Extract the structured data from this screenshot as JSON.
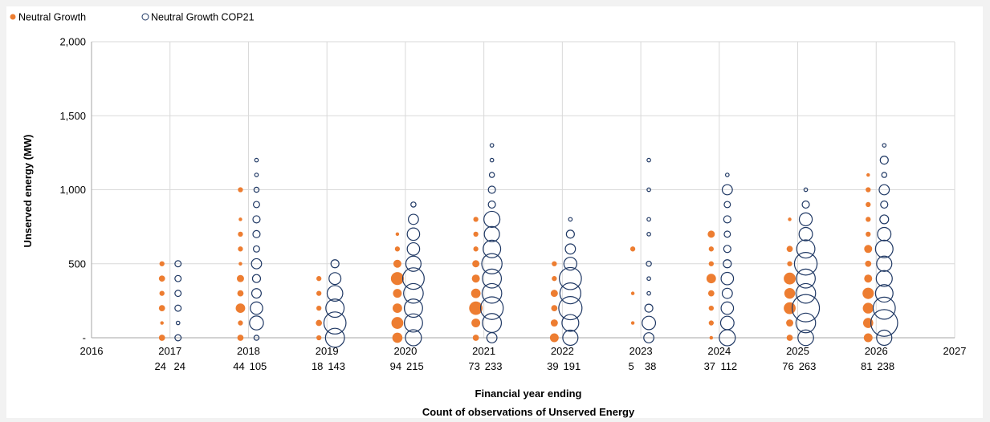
{
  "chart_data": {
    "type": "scatter",
    "subtype": "bubble",
    "title": "",
    "xlabel": "Financial year ending",
    "xlabel2": "Count of observations of Unserved Energy",
    "ylabel": "Unserved energy (MW)",
    "xlim": [
      2016,
      2027
    ],
    "ylim": [
      0,
      2000
    ],
    "x_ticks": [
      "2016",
      "2017",
      "2018",
      "2019",
      "2020",
      "2021",
      "2022",
      "2023",
      "2024",
      "2025",
      "2026",
      "2027"
    ],
    "y_ticks": [
      {
        "value": 0,
        "label": "-"
      },
      {
        "value": 500,
        "label": "500"
      },
      {
        "value": 1000,
        "label": "1,000"
      },
      {
        "value": 1500,
        "label": "1,500"
      },
      {
        "value": 2000,
        "label": "2,000"
      }
    ],
    "grid": true,
    "legend_position": "top-left",
    "series": [
      {
        "name": "Neutral Growth",
        "color": "#ed7d31",
        "marker": "filled-circle",
        "counts": [
          24,
          44,
          18,
          94,
          73,
          39,
          5,
          37,
          76,
          81
        ],
        "points": [
          {
            "x": 2017,
            "y": 500,
            "size": 2
          },
          {
            "x": 2017,
            "y": 400,
            "size": 3
          },
          {
            "x": 2017,
            "y": 300,
            "size": 2
          },
          {
            "x": 2017,
            "y": 200,
            "size": 3
          },
          {
            "x": 2017,
            "y": 100,
            "size": 1
          },
          {
            "x": 2017,
            "y": 0,
            "size": 3
          },
          {
            "x": 2018,
            "y": 1000,
            "size": 2
          },
          {
            "x": 2018,
            "y": 800,
            "size": 1
          },
          {
            "x": 2018,
            "y": 700,
            "size": 2
          },
          {
            "x": 2018,
            "y": 600,
            "size": 2
          },
          {
            "x": 2018,
            "y": 500,
            "size": 1
          },
          {
            "x": 2018,
            "y": 400,
            "size": 4
          },
          {
            "x": 2018,
            "y": 300,
            "size": 3
          },
          {
            "x": 2018,
            "y": 200,
            "size": 7
          },
          {
            "x": 2018,
            "y": 100,
            "size": 2
          },
          {
            "x": 2018,
            "y": 0,
            "size": 3
          },
          {
            "x": 2019,
            "y": 400,
            "size": 2
          },
          {
            "x": 2019,
            "y": 300,
            "size": 2
          },
          {
            "x": 2019,
            "y": 200,
            "size": 2
          },
          {
            "x": 2019,
            "y": 100,
            "size": 3
          },
          {
            "x": 2019,
            "y": 0,
            "size": 2
          },
          {
            "x": 2020,
            "y": 700,
            "size": 1
          },
          {
            "x": 2020,
            "y": 600,
            "size": 2
          },
          {
            "x": 2020,
            "y": 500,
            "size": 5
          },
          {
            "x": 2020,
            "y": 400,
            "size": 13
          },
          {
            "x": 2020,
            "y": 300,
            "size": 6
          },
          {
            "x": 2020,
            "y": 200,
            "size": 7
          },
          {
            "x": 2020,
            "y": 100,
            "size": 11
          },
          {
            "x": 2020,
            "y": 0,
            "size": 8
          },
          {
            "x": 2021,
            "y": 800,
            "size": 2
          },
          {
            "x": 2021,
            "y": 700,
            "size": 2
          },
          {
            "x": 2021,
            "y": 600,
            "size": 2
          },
          {
            "x": 2021,
            "y": 500,
            "size": 4
          },
          {
            "x": 2021,
            "y": 400,
            "size": 5
          },
          {
            "x": 2021,
            "y": 300,
            "size": 7
          },
          {
            "x": 2021,
            "y": 200,
            "size": 14
          },
          {
            "x": 2021,
            "y": 100,
            "size": 6
          },
          {
            "x": 2021,
            "y": 0,
            "size": 3
          },
          {
            "x": 2022,
            "y": 500,
            "size": 2
          },
          {
            "x": 2022,
            "y": 400,
            "size": 2
          },
          {
            "x": 2022,
            "y": 300,
            "size": 4
          },
          {
            "x": 2022,
            "y": 200,
            "size": 3
          },
          {
            "x": 2022,
            "y": 100,
            "size": 4
          },
          {
            "x": 2022,
            "y": 0,
            "size": 6
          },
          {
            "x": 2023,
            "y": 600,
            "size": 2
          },
          {
            "x": 2023,
            "y": 300,
            "size": 1
          },
          {
            "x": 2023,
            "y": 100,
            "size": 1
          },
          {
            "x": 2024,
            "y": 700,
            "size": 4
          },
          {
            "x": 2024,
            "y": 600,
            "size": 2
          },
          {
            "x": 2024,
            "y": 500,
            "size": 2
          },
          {
            "x": 2024,
            "y": 400,
            "size": 7
          },
          {
            "x": 2024,
            "y": 300,
            "size": 3
          },
          {
            "x": 2024,
            "y": 200,
            "size": 2
          },
          {
            "x": 2024,
            "y": 100,
            "size": 2
          },
          {
            "x": 2024,
            "y": 0,
            "size": 1
          },
          {
            "x": 2025,
            "y": 800,
            "size": 1
          },
          {
            "x": 2025,
            "y": 600,
            "size": 3
          },
          {
            "x": 2025,
            "y": 500,
            "size": 2
          },
          {
            "x": 2025,
            "y": 400,
            "size": 11
          },
          {
            "x": 2025,
            "y": 300,
            "size": 9
          },
          {
            "x": 2025,
            "y": 200,
            "size": 11
          },
          {
            "x": 2025,
            "y": 100,
            "size": 4
          },
          {
            "x": 2025,
            "y": 0,
            "size": 3
          },
          {
            "x": 2026,
            "y": 1100,
            "size": 1
          },
          {
            "x": 2026,
            "y": 1000,
            "size": 2
          },
          {
            "x": 2026,
            "y": 900,
            "size": 2
          },
          {
            "x": 2026,
            "y": 800,
            "size": 2
          },
          {
            "x": 2026,
            "y": 700,
            "size": 2
          },
          {
            "x": 2026,
            "y": 600,
            "size": 5
          },
          {
            "x": 2026,
            "y": 500,
            "size": 3
          },
          {
            "x": 2026,
            "y": 400,
            "size": 5
          },
          {
            "x": 2026,
            "y": 300,
            "size": 10
          },
          {
            "x": 2026,
            "y": 200,
            "size": 9
          },
          {
            "x": 2026,
            "y": 100,
            "size": 8
          },
          {
            "x": 2026,
            "y": 0,
            "size": 6
          }
        ]
      },
      {
        "name": "Neutral Growth COP21",
        "color": "#1f3864",
        "marker": "hollow-circle",
        "counts": [
          24,
          105,
          143,
          215,
          233,
          191,
          38,
          112,
          263,
          238
        ],
        "points": [
          {
            "x": 2017,
            "y": 500,
            "size": 3
          },
          {
            "x": 2017,
            "y": 400,
            "size": 3
          },
          {
            "x": 2017,
            "y": 300,
            "size": 3
          },
          {
            "x": 2017,
            "y": 200,
            "size": 3
          },
          {
            "x": 2017,
            "y": 100,
            "size": 1
          },
          {
            "x": 2017,
            "y": 0,
            "size": 3
          },
          {
            "x": 2018,
            "y": 1200,
            "size": 1
          },
          {
            "x": 2018,
            "y": 1100,
            "size": 1
          },
          {
            "x": 2018,
            "y": 1000,
            "size": 2
          },
          {
            "x": 2018,
            "y": 900,
            "size": 3
          },
          {
            "x": 2018,
            "y": 800,
            "size": 4
          },
          {
            "x": 2018,
            "y": 700,
            "size": 4
          },
          {
            "x": 2018,
            "y": 600,
            "size": 3
          },
          {
            "x": 2018,
            "y": 500,
            "size": 8
          },
          {
            "x": 2018,
            "y": 400,
            "size": 5
          },
          {
            "x": 2018,
            "y": 300,
            "size": 7
          },
          {
            "x": 2018,
            "y": 200,
            "size": 12
          },
          {
            "x": 2018,
            "y": 100,
            "size": 15
          },
          {
            "x": 2018,
            "y": 0,
            "size": 2
          },
          {
            "x": 2019,
            "y": 500,
            "size": 5
          },
          {
            "x": 2019,
            "y": 400,
            "size": 11
          },
          {
            "x": 2019,
            "y": 300,
            "size": 19
          },
          {
            "x": 2019,
            "y": 200,
            "size": 26
          },
          {
            "x": 2019,
            "y": 100,
            "size": 38
          },
          {
            "x": 2019,
            "y": 0,
            "size": 28
          },
          {
            "x": 2020,
            "y": 900,
            "size": 2
          },
          {
            "x": 2020,
            "y": 800,
            "size": 8
          },
          {
            "x": 2020,
            "y": 700,
            "size": 12
          },
          {
            "x": 2020,
            "y": 600,
            "size": 12
          },
          {
            "x": 2020,
            "y": 500,
            "size": 18
          },
          {
            "x": 2020,
            "y": 400,
            "size": 36
          },
          {
            "x": 2020,
            "y": 300,
            "size": 30
          },
          {
            "x": 2020,
            "y": 200,
            "size": 26
          },
          {
            "x": 2020,
            "y": 100,
            "size": 26
          },
          {
            "x": 2020,
            "y": 0,
            "size": 20
          },
          {
            "x": 2021,
            "y": 1300,
            "size": 1
          },
          {
            "x": 2021,
            "y": 1200,
            "size": 1
          },
          {
            "x": 2021,
            "y": 1100,
            "size": 2
          },
          {
            "x": 2021,
            "y": 1000,
            "size": 4
          },
          {
            "x": 2021,
            "y": 900,
            "size": 4
          },
          {
            "x": 2021,
            "y": 800,
            "size": 20
          },
          {
            "x": 2021,
            "y": 700,
            "size": 18
          },
          {
            "x": 2021,
            "y": 600,
            "size": 24
          },
          {
            "x": 2021,
            "y": 500,
            "size": 32
          },
          {
            "x": 2021,
            "y": 400,
            "size": 28
          },
          {
            "x": 2021,
            "y": 300,
            "size": 30
          },
          {
            "x": 2021,
            "y": 200,
            "size": 40
          },
          {
            "x": 2021,
            "y": 100,
            "size": 28
          },
          {
            "x": 2021,
            "y": 0,
            "size": 8
          },
          {
            "x": 2022,
            "y": 800,
            "size": 1
          },
          {
            "x": 2022,
            "y": 700,
            "size": 5
          },
          {
            "x": 2022,
            "y": 600,
            "size": 8
          },
          {
            "x": 2022,
            "y": 500,
            "size": 13
          },
          {
            "x": 2022,
            "y": 400,
            "size": 38
          },
          {
            "x": 2022,
            "y": 300,
            "size": 34
          },
          {
            "x": 2022,
            "y": 200,
            "size": 42
          },
          {
            "x": 2022,
            "y": 100,
            "size": 22
          },
          {
            "x": 2022,
            "y": 0,
            "size": 18
          },
          {
            "x": 2023,
            "y": 1200,
            "size": 1
          },
          {
            "x": 2023,
            "y": 1000,
            "size": 1
          },
          {
            "x": 2023,
            "y": 800,
            "size": 1
          },
          {
            "x": 2023,
            "y": 700,
            "size": 1
          },
          {
            "x": 2023,
            "y": 500,
            "size": 2
          },
          {
            "x": 2023,
            "y": 400,
            "size": 1
          },
          {
            "x": 2023,
            "y": 300,
            "size": 1
          },
          {
            "x": 2023,
            "y": 200,
            "size": 5
          },
          {
            "x": 2023,
            "y": 100,
            "size": 14
          },
          {
            "x": 2023,
            "y": 0,
            "size": 8
          },
          {
            "x": 2024,
            "y": 1100,
            "size": 1
          },
          {
            "x": 2024,
            "y": 1000,
            "size": 8
          },
          {
            "x": 2024,
            "y": 900,
            "size": 3
          },
          {
            "x": 2024,
            "y": 800,
            "size": 4
          },
          {
            "x": 2024,
            "y": 700,
            "size": 3
          },
          {
            "x": 2024,
            "y": 600,
            "size": 4
          },
          {
            "x": 2024,
            "y": 500,
            "size": 5
          },
          {
            "x": 2024,
            "y": 400,
            "size": 12
          },
          {
            "x": 2024,
            "y": 300,
            "size": 8
          },
          {
            "x": 2024,
            "y": 200,
            "size": 12
          },
          {
            "x": 2024,
            "y": 100,
            "size": 14
          },
          {
            "x": 2024,
            "y": 0,
            "size": 20
          },
          {
            "x": 2025,
            "y": 1000,
            "size": 1
          },
          {
            "x": 2025,
            "y": 900,
            "size": 4
          },
          {
            "x": 2025,
            "y": 800,
            "size": 13
          },
          {
            "x": 2025,
            "y": 700,
            "size": 14
          },
          {
            "x": 2025,
            "y": 600,
            "size": 26
          },
          {
            "x": 2025,
            "y": 500,
            "size": 40
          },
          {
            "x": 2025,
            "y": 400,
            "size": 28
          },
          {
            "x": 2025,
            "y": 300,
            "size": 30
          },
          {
            "x": 2025,
            "y": 200,
            "size": 58
          },
          {
            "x": 2025,
            "y": 100,
            "size": 30
          },
          {
            "x": 2025,
            "y": 0,
            "size": 19
          },
          {
            "x": 2026,
            "y": 1300,
            "size": 1
          },
          {
            "x": 2026,
            "y": 1200,
            "size": 5
          },
          {
            "x": 2026,
            "y": 1100,
            "size": 2
          },
          {
            "x": 2026,
            "y": 1000,
            "size": 8
          },
          {
            "x": 2026,
            "y": 900,
            "size": 4
          },
          {
            "x": 2026,
            "y": 800,
            "size": 6
          },
          {
            "x": 2026,
            "y": 700,
            "size": 14
          },
          {
            "x": 2026,
            "y": 600,
            "size": 24
          },
          {
            "x": 2026,
            "y": 500,
            "size": 18
          },
          {
            "x": 2026,
            "y": 400,
            "size": 20
          },
          {
            "x": 2026,
            "y": 300,
            "size": 24
          },
          {
            "x": 2026,
            "y": 200,
            "size": 38
          },
          {
            "x": 2026,
            "y": 100,
            "size": 56
          },
          {
            "x": 2026,
            "y": 0,
            "size": 18
          }
        ]
      }
    ]
  }
}
